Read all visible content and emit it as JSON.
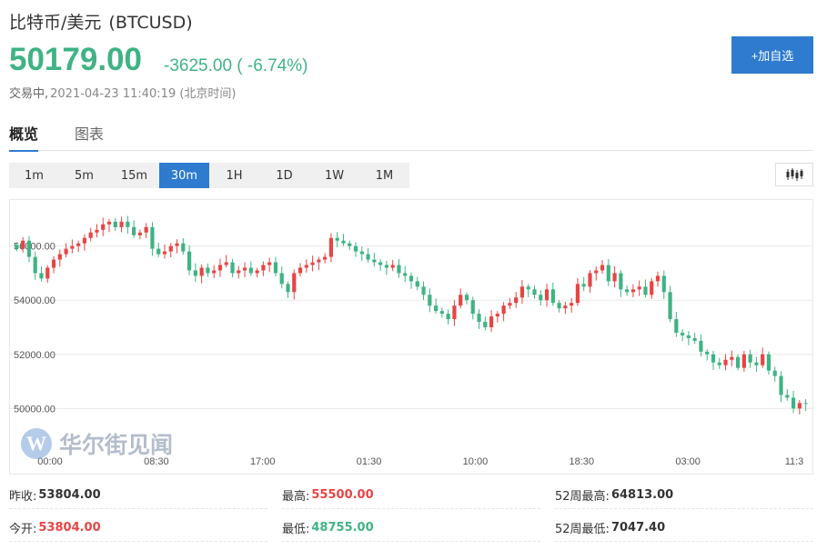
{
  "header": {
    "name": "比特币/美元",
    "code": "(BTCUSD)"
  },
  "quote": {
    "price": "50179.00",
    "change": "-3625.00 ( -6.74%)",
    "status_label": "交易中,",
    "timestamp": "2021-04-23 11:40:19 (北京时间)"
  },
  "add_button": "+加自选",
  "tabs": [
    {
      "label": "概览"
    },
    {
      "label": "图表"
    }
  ],
  "intervals": [
    "1m",
    "5m",
    "15m",
    "30m",
    "1H",
    "1D",
    "1W",
    "1M"
  ],
  "selected_interval": "30m",
  "chart_type_icon": "candlestick-icon",
  "watermark": {
    "logo_letter": "W",
    "text": "华尔街见闻"
  },
  "colors": {
    "up": "#e64545",
    "down": "#3fb384",
    "accent": "#2e7bcf",
    "grid": "#e8e8e8"
  },
  "stats": {
    "prev_close_label": "昨收:",
    "prev_close": "53804.00",
    "high_label": "最高:",
    "high": "55500.00",
    "high52_label": "52周最高:",
    "high52": "64813.00",
    "open_label": "今开:",
    "open": "53804.00",
    "low_label": "最低:",
    "low": "48755.00",
    "low52_label": "52周最低:",
    "low52": "7047.40"
  },
  "chart_data": {
    "type": "candlestick",
    "y_ticks": [
      "56000.00",
      "54000.00",
      "52000.00",
      "50000.00"
    ],
    "y_tick_values": [
      56000,
      54000,
      52000,
      50000
    ],
    "x_ticks": [
      "00:00",
      "08:30",
      "17:00",
      "01:30",
      "10:00",
      "18:30",
      "03:00",
      "11:3"
    ],
    "ylim": [
      48500,
      57500
    ],
    "grid": true,
    "closes": [
      55900,
      56200,
      55600,
      55000,
      54800,
      55200,
      55500,
      55700,
      55900,
      56000,
      56100,
      56300,
      56500,
      56600,
      56800,
      56900,
      56700,
      56900,
      56700,
      56400,
      56500,
      56700,
      55900,
      55700,
      55800,
      56000,
      56100,
      55800,
      55100,
      54900,
      55200,
      55000,
      55100,
      55300,
      55400,
      55000,
      55100,
      55200,
      55000,
      55100,
      55300,
      55400,
      55000,
      54600,
      54300,
      55000,
      55200,
      55300,
      55400,
      55500,
      55600,
      56300,
      56200,
      56100,
      56000,
      55800,
      55700,
      55500,
      55400,
      55300,
      55200,
      55300,
      55000,
      54900,
      54700,
      54500,
      54200,
      53800,
      53600,
      53500,
      53300,
      53800,
      54200,
      54000,
      53500,
      53200,
      53000,
      53400,
      53500,
      53800,
      53900,
      54100,
      54500,
      54400,
      54200,
      54000,
      54400,
      53900,
      53700,
      53800,
      53900,
      54600,
      54500,
      55000,
      55100,
      55300,
      54700,
      55000,
      54400,
      54300,
      54400,
      54500,
      54200,
      54700,
      54900,
      54300,
      53300,
      52800,
      52700,
      52600,
      52500,
      52100,
      52000,
      51700,
      51600,
      51800,
      51900,
      51500,
      52000,
      51700,
      51600,
      52000,
      51400,
      51200,
      50500,
      50400,
      50000,
      50200,
      50179
    ]
  }
}
